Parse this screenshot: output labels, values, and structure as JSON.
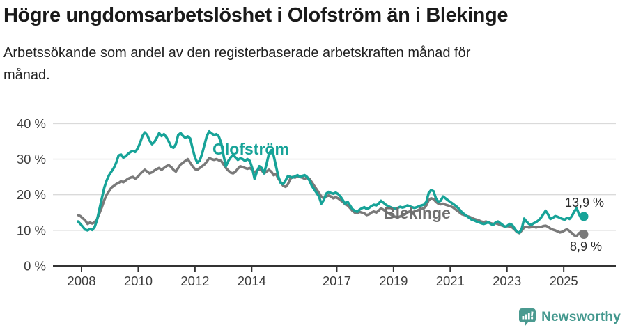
{
  "header": {
    "title": "Högre ungdomsarbetslöshet i Olofström än i Blekinge",
    "subtitle_line1": "Arbetssökande som andel av den registerbaserade arbetskraften månad för",
    "subtitle_line2": "månad."
  },
  "chart_data": {
    "type": "line",
    "title": "Högre ungdomsarbetslöshet i Olofström än i Blekinge",
    "subtitle": "Arbetssökande som andel av den registerbaserade arbetskraften månad för månad.",
    "xlabel": "",
    "ylabel": "",
    "frequency": "monthly",
    "x_start_year": 2008,
    "ylim": [
      0,
      42
    ],
    "grid": "horizontal",
    "legend_position": "inline-labels",
    "yticks": [
      {
        "value": 0,
        "label": "0 %"
      },
      {
        "value": 10,
        "label": "10 %"
      },
      {
        "value": 20,
        "label": "20 %"
      },
      {
        "value": 30,
        "label": "30 %"
      },
      {
        "value": 40,
        "label": "40 %"
      }
    ],
    "xticks": [
      {
        "year": 2008,
        "label": "2008"
      },
      {
        "year": 2010,
        "label": "2010"
      },
      {
        "year": 2012,
        "label": "2012"
      },
      {
        "year": 2014,
        "label": "2014"
      },
      {
        "year": 2017,
        "label": "2017"
      },
      {
        "year": 2019,
        "label": "2019"
      },
      {
        "year": 2021,
        "label": "2021"
      },
      {
        "year": 2023,
        "label": "2023"
      },
      {
        "year": 2025,
        "label": "2025"
      }
    ],
    "series": [
      {
        "name": "Blekinge",
        "color": "#7a7a7a",
        "label_color": "#6f6f6f",
        "end_label": "8,9 %",
        "end_value": 8.9,
        "values": [
          14.3,
          14.0,
          13.4,
          12.8,
          11.8,
          12.2,
          11.9,
          12.3,
          13.2,
          14.8,
          16.5,
          18.5,
          20.0,
          21.0,
          22.0,
          22.5,
          23.0,
          23.3,
          23.8,
          23.5,
          24.0,
          24.5,
          24.8,
          25.0,
          24.5,
          25.0,
          25.8,
          26.5,
          27.0,
          26.5,
          26.0,
          26.3,
          26.8,
          27.2,
          27.5,
          27.0,
          27.5,
          28.0,
          28.3,
          27.8,
          27.0,
          26.5,
          27.5,
          28.5,
          29.0,
          29.5,
          30.0,
          29.0,
          28.0,
          27.2,
          27.0,
          27.5,
          28.0,
          28.5,
          29.3,
          30.3,
          30.0,
          29.8,
          30.0,
          29.7,
          29.5,
          28.5,
          27.5,
          26.8,
          26.2,
          26.0,
          26.5,
          27.3,
          28.0,
          27.8,
          27.5,
          27.3,
          27.5,
          27.0,
          26.3,
          26.8,
          27.2,
          26.8,
          26.0,
          26.5,
          27.0,
          26.5,
          25.5,
          25.8,
          24.5,
          23.5,
          22.5,
          22.2,
          23.0,
          24.5,
          25.0,
          24.8,
          25.2,
          25.0,
          24.8,
          24.5,
          24.8,
          24.5,
          23.5,
          22.5,
          21.5,
          20.5,
          19.5,
          19.0,
          19.5,
          19.8,
          19.5,
          19.0,
          19.3,
          19.0,
          18.5,
          18.0,
          17.3,
          17.0,
          16.3,
          15.5,
          15.0,
          14.8,
          15.2,
          15.0,
          14.8,
          14.3,
          14.5,
          15.0,
          15.3,
          15.0,
          15.5,
          16.2,
          15.8,
          15.3,
          14.8,
          14.5,
          14.0,
          13.8,
          13.6,
          13.9,
          14.2,
          14.5,
          15.0,
          15.3,
          15.0,
          15.3,
          15.5,
          15.8,
          16.0,
          16.2,
          17.0,
          18.5,
          19.0,
          18.8,
          18.0,
          17.5,
          17.3,
          17.5,
          17.2,
          17.0,
          16.8,
          16.5,
          16.0,
          15.5,
          15.0,
          14.5,
          14.3,
          14.0,
          13.8,
          13.5,
          13.2,
          13.0,
          12.8,
          12.5,
          12.3,
          12.5,
          12.2,
          12.0,
          11.8,
          12.0,
          11.8,
          11.5,
          11.3,
          11.0,
          11.2,
          11.0,
          10.8,
          10.2,
          9.5,
          9.2,
          10.0,
          10.8,
          11.0,
          10.8,
          10.9,
          11.0,
          10.8,
          11.0,
          10.9,
          11.2,
          11.3,
          11.0,
          10.5,
          10.2,
          10.0,
          9.7,
          9.4,
          9.6,
          10.0,
          10.3,
          9.8,
          9.2,
          8.6,
          8.4,
          9.2,
          9.7,
          8.9
        ]
      },
      {
        "name": "Olofström",
        "color": "#17a398",
        "label_color": "#17a398",
        "end_label": "13,9 %",
        "end_value": 13.9,
        "values": [
          12.5,
          11.8,
          11.0,
          10.2,
          10.0,
          10.4,
          10.1,
          11.0,
          13.0,
          16.0,
          19.0,
          22.0,
          24.0,
          25.5,
          26.5,
          27.5,
          29.0,
          31.0,
          31.3,
          30.4,
          30.8,
          31.5,
          32.0,
          32.3,
          32.0,
          33.0,
          34.5,
          36.5,
          37.5,
          36.8,
          35.2,
          34.2,
          34.8,
          36.0,
          37.3,
          36.5,
          37.0,
          36.2,
          35.0,
          33.5,
          33.2,
          34.2,
          36.8,
          37.3,
          36.5,
          36.0,
          36.4,
          35.8,
          33.0,
          30.5,
          29.0,
          29.6,
          31.5,
          34.0,
          36.5,
          37.8,
          37.2,
          36.8,
          37.0,
          36.4,
          34.5,
          31.0,
          28.0,
          29.5,
          30.5,
          31.2,
          30.5,
          29.8,
          30.2,
          30.0,
          29.5,
          30.0,
          29.5,
          27.5,
          24.5,
          26.5,
          28.0,
          27.5,
          26.0,
          28.5,
          31.5,
          32.5,
          31.0,
          28.0,
          25.0,
          23.2,
          23.0,
          24.0,
          25.3,
          25.0,
          24.8,
          25.2,
          25.5,
          25.0,
          25.3,
          25.5,
          25.0,
          24.0,
          22.5,
          21.5,
          20.5,
          19.5,
          17.5,
          18.5,
          20.3,
          20.8,
          20.5,
          20.3,
          20.6,
          20.2,
          19.5,
          18.5,
          17.5,
          18.0,
          17.0,
          16.0,
          15.5,
          15.2,
          15.8,
          16.2,
          16.5,
          16.0,
          16.3,
          16.8,
          17.2,
          17.0,
          17.5,
          18.3,
          17.8,
          17.2,
          16.8,
          16.5,
          16.2,
          16.0,
          16.3,
          16.6,
          16.4,
          16.6,
          17.0,
          16.8,
          16.5,
          16.3,
          16.5,
          16.8,
          17.0,
          17.2,
          18.0,
          20.5,
          21.3,
          21.0,
          19.0,
          18.0,
          18.3,
          19.5,
          19.0,
          18.5,
          18.0,
          17.5,
          17.0,
          16.5,
          15.8,
          15.0,
          14.5,
          14.0,
          13.5,
          13.0,
          12.8,
          12.5,
          12.3,
          12.0,
          11.8,
          12.0,
          12.3,
          11.8,
          11.5,
          12.2,
          12.5,
          12.0,
          11.5,
          11.0,
          11.3,
          11.8,
          11.5,
          10.5,
          9.6,
          9.3,
          10.5,
          13.3,
          12.5,
          11.8,
          11.5,
          12.0,
          12.3,
          12.8,
          13.5,
          14.5,
          15.5,
          14.5,
          13.2,
          13.5,
          14.0,
          13.8,
          13.5,
          13.2,
          13.0,
          13.5,
          13.2,
          14.0,
          15.3,
          16.2,
          14.5,
          13.3,
          13.9
        ]
      }
    ],
    "colors": {
      "gridline": "#dadada",
      "axis": "#333333",
      "tick_text": "#3c3c3c",
      "annotation_text": "#2b2b2b"
    }
  },
  "footer": {
    "brand": "Newsworthy",
    "brand_color": "#43988e"
  }
}
